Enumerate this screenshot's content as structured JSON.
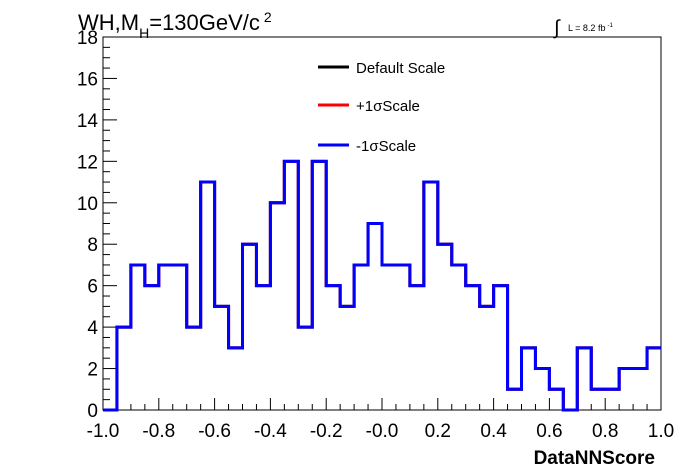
{
  "chart_data": {
    "type": "line",
    "style": "step-histogram",
    "title": "WH,M",
    "title_sub": "H",
    "title_rest": "=130GeV/c",
    "title_sup": "2",
    "lumi_label": "L = 8.2 fb",
    "lumi_sup": "-1",
    "xlabel": "DataNNScore",
    "ylabel": "",
    "xlim": [
      -1.0,
      1.0
    ],
    "ylim": [
      0,
      18
    ],
    "x_ticks": [
      "-1.0",
      "-0.8",
      "-0.6",
      "-0.4",
      "-0.2",
      "-0.0",
      "0.2",
      "0.4",
      "0.6",
      "0.8",
      "1.0"
    ],
    "y_ticks": [
      "0",
      "2",
      "4",
      "6",
      "8",
      "10",
      "12",
      "14",
      "16",
      "18"
    ],
    "legend_position": "top-center",
    "bin_edges": [
      -1.0,
      -0.95,
      -0.9,
      -0.85,
      -0.8,
      -0.75,
      -0.7,
      -0.65,
      -0.6,
      -0.55,
      -0.5,
      -0.45,
      -0.4,
      -0.35,
      -0.3,
      -0.25,
      -0.2,
      -0.15,
      -0.1,
      -0.05,
      0.0,
      0.05,
      0.1,
      0.15,
      0.2,
      0.25,
      0.3,
      0.35,
      0.4,
      0.45,
      0.5,
      0.55,
      0.6,
      0.65,
      0.7,
      0.75,
      0.8,
      0.85,
      0.9,
      0.95,
      1.0
    ],
    "series": [
      {
        "name": "Default Scale",
        "color": "#000000",
        "values": [
          0,
          4,
          7,
          6,
          7,
          7,
          4,
          11,
          5,
          3,
          8,
          6,
          10,
          12,
          4,
          12,
          6,
          5,
          7,
          9,
          7,
          7,
          6,
          11,
          8,
          7,
          6,
          5,
          6,
          1,
          3,
          2,
          1,
          0,
          3,
          1,
          1,
          2,
          2,
          3
        ]
      },
      {
        "name": "+1σScale",
        "color": "#ff0000",
        "values": [
          0,
          4,
          7,
          6,
          7,
          7,
          4,
          11,
          5,
          3,
          8,
          6,
          10,
          12,
          4,
          12,
          6,
          5,
          7,
          9,
          7,
          7,
          6,
          11,
          8,
          7,
          6,
          5,
          6,
          1,
          3,
          2,
          1,
          0,
          3,
          1,
          1,
          2,
          2,
          3
        ]
      },
      {
        "name": "-1σScale",
        "color": "#0000ff",
        "values": [
          0,
          4,
          7,
          6,
          7,
          7,
          4,
          11,
          5,
          3,
          8,
          6,
          10,
          12,
          4,
          12,
          6,
          5,
          7,
          9,
          7,
          7,
          6,
          11,
          8,
          7,
          6,
          5,
          6,
          1,
          3,
          2,
          1,
          0,
          3,
          1,
          1,
          2,
          2,
          3
        ]
      }
    ]
  }
}
